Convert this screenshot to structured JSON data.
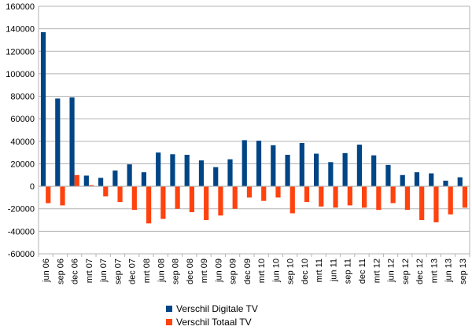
{
  "chart_data": {
    "type": "bar",
    "title": "",
    "xlabel": "",
    "ylabel": "",
    "ylim": [
      -60000,
      160000
    ],
    "ytick_step": 20000,
    "yticks": [
      "-60000",
      "-40000",
      "-20000",
      "0",
      "20000",
      "40000",
      "60000",
      "80000",
      "100000",
      "120000",
      "140000",
      "160000"
    ],
    "grid": true,
    "legend_position": "bottom-center",
    "categories": [
      "jun 06",
      "sep 06",
      "dec 06",
      "mrt 07",
      "jun 07",
      "sep 07",
      "dec 07",
      "mrt 08",
      "jun 08",
      "sep 08",
      "dec 08",
      "mrt 09",
      "jun 09",
      "sep 09",
      "dec 09",
      "mrt 10",
      "jun 10",
      "sep 10",
      "dec 10",
      "mrt 11",
      "jun 11",
      "sep 11",
      "dec 11",
      "mrt 12",
      "jun 12",
      "sep 12",
      "dec 12",
      "mrt 13",
      "jun 13",
      "sep 13"
    ],
    "series": [
      {
        "name": "Verschil Digitale TV",
        "color": "#004586",
        "values": [
          137000,
          78000,
          79000,
          9500,
          7500,
          14000,
          19500,
          12500,
          30000,
          28500,
          28000,
          23000,
          17000,
          24000,
          41000,
          40500,
          36500,
          28000,
          38500,
          29000,
          21500,
          29500,
          37000,
          27500,
          19000,
          10000,
          12500,
          11500,
          5000,
          8000
        ]
      },
      {
        "name": "Verschil Totaal TV",
        "color": "#ff420e",
        "values": [
          -15000,
          -17000,
          10000,
          1000,
          -9000,
          -14000,
          -21000,
          -33000,
          -29000,
          -20000,
          -23000,
          -30000,
          -26000,
          -20000,
          -10000,
          -13000,
          -10000,
          -24000,
          -14000,
          -18000,
          -19000,
          -17000,
          -19000,
          -21000,
          -15000,
          -21000,
          -30000,
          -32000,
          -25000,
          -19000
        ]
      }
    ]
  }
}
